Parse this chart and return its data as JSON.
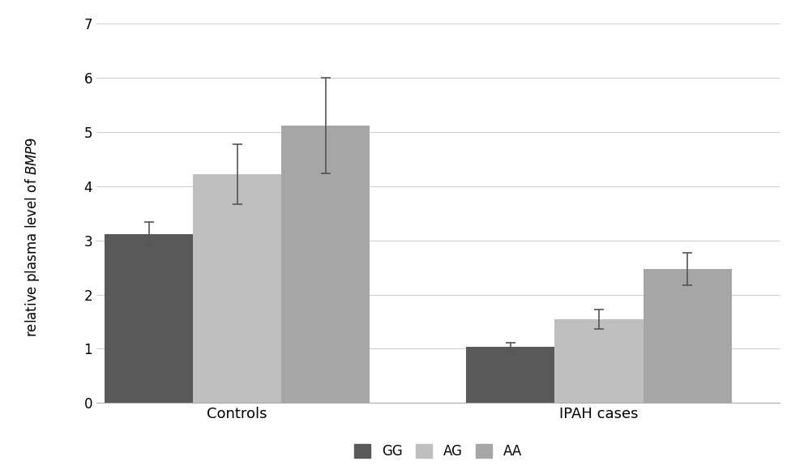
{
  "groups": [
    "Controls",
    "IPAH cases"
  ],
  "series": [
    "GG",
    "AG",
    "AA"
  ],
  "values": {
    "Controls": [
      3.12,
      4.22,
      5.12
    ],
    "IPAH cases": [
      1.03,
      1.55,
      2.47
    ]
  },
  "errors": {
    "Controls": [
      0.22,
      0.55,
      0.88
    ],
    "IPAH cases": [
      0.08,
      0.18,
      0.3
    ]
  },
  "bar_colors": [
    "#595959",
    "#bfbfbf",
    "#a6a6a6"
  ],
  "ylabel_normal": "relative plasma level of ",
  "ylim": [
    0,
    7
  ],
  "yticks": [
    0,
    1,
    2,
    3,
    4,
    5,
    6,
    7
  ],
  "background_color": "#ffffff",
  "bar_width": 0.22,
  "legend_labels": [
    "GG",
    "AG",
    "AA"
  ],
  "grid_color": "#d0d0d0"
}
